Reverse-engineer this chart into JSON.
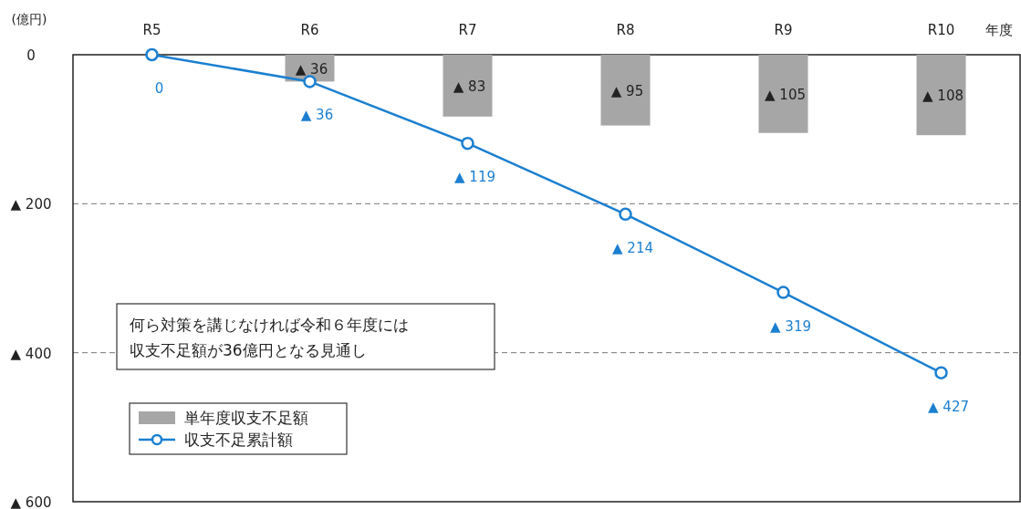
{
  "chart_data": {
    "type": "line",
    "xlabel": "年度",
    "ylabel": "(億円)",
    "categories": [
      "R5",
      "R6",
      "R7",
      "R8",
      "R9",
      "R10"
    ],
    "ylim": [
      600,
      0
    ],
    "yticks": [
      0,
      {
        "value": 200,
        "label": "▲ 200"
      },
      {
        "value": 400,
        "label": "▲ 400"
      },
      {
        "value": 600,
        "label": "▲ 600"
      }
    ],
    "grid": "y",
    "legend": "bottom left",
    "marker": "circle",
    "series": [
      {
        "name": "単年度収支不足額",
        "type": "bar",
        "color": "#a6a6a6",
        "values": [
          null,
          36,
          83,
          95,
          105,
          108
        ],
        "value_labels": [
          null,
          "▲ 36",
          "▲ 83",
          "▲ 95",
          "▲ 105",
          "▲ 108"
        ]
      },
      {
        "name": "収支不足累計額",
        "color": "#1b7fd1",
        "values": [
          0,
          36,
          119,
          214,
          319,
          427
        ],
        "value_labels": [
          "0",
          "▲ 36",
          "▲ 119",
          "▲ 214",
          "▲ 319",
          "▲ 427"
        ]
      }
    ],
    "annotations": [
      "何ら対策を講じなければ令和６年度には収支不足額が36億円となる見通し"
    ]
  }
}
